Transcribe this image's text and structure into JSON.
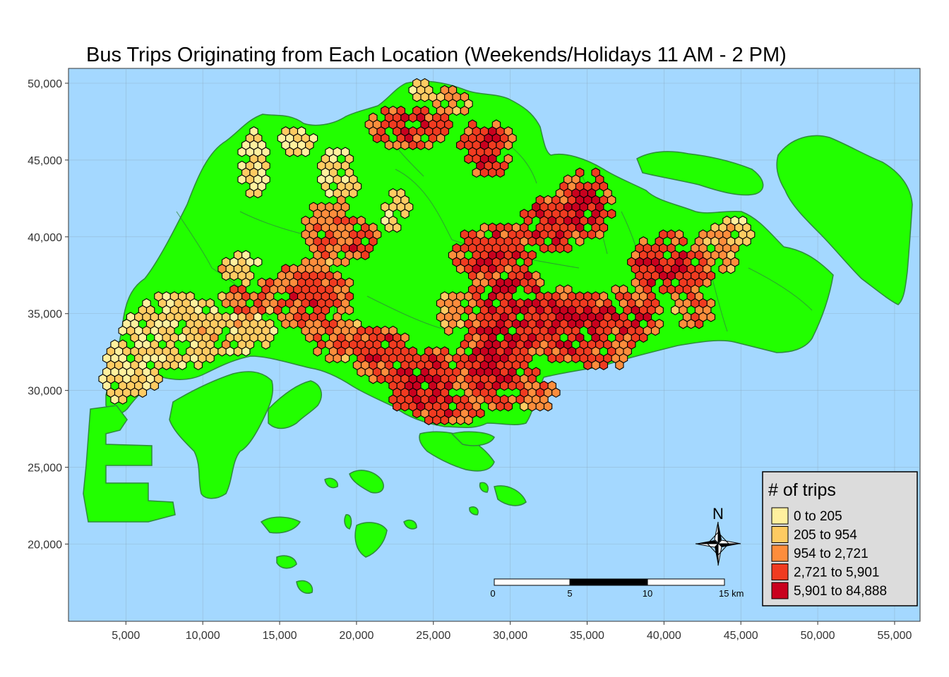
{
  "title": "Bus Trips Originating from Each Location (Weekends/Holidays 11 AM - 2 PM)",
  "colors": {
    "sea": "#A4D8FF",
    "land": "#22FF00",
    "land_border": "#2E8B3A",
    "bins": [
      "#FFF09E",
      "#FECB62",
      "#FD8D3C",
      "#F03B20",
      "#C9011E"
    ]
  },
  "axes": {
    "x_ticks": [
      "5,000",
      "10,000",
      "15,000",
      "20,000",
      "25,000",
      "30,000",
      "35,000",
      "40,000",
      "45,000",
      "50,000",
      "55,000"
    ],
    "y_ticks": [
      "50,000",
      "45,000",
      "40,000",
      "35,000",
      "30,000",
      "25,000",
      "20,000"
    ],
    "x_values": [
      5000,
      10000,
      15000,
      20000,
      25000,
      30000,
      35000,
      40000,
      45000,
      50000,
      55000
    ],
    "y_values": [
      50000,
      45000,
      40000,
      35000,
      30000,
      25000,
      20000
    ]
  },
  "legend": {
    "title": "# of trips",
    "items": [
      "0 to 205",
      "205 to 954",
      "954 to 2,721",
      "2,721 to 5,901",
      "5,901 to 84,888"
    ]
  },
  "scale_bar": {
    "labels": [
      "0",
      "5",
      "10",
      "15 km"
    ]
  },
  "north_arrow": {
    "label": "N"
  }
}
